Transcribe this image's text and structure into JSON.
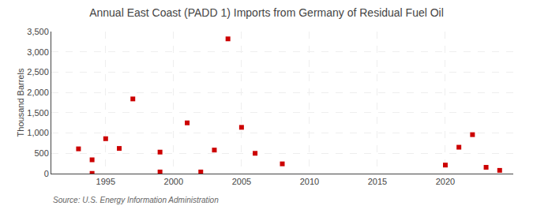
{
  "chart_data": {
    "type": "scatter",
    "title": "Annual East Coast (PADD 1) Imports from Germany of Residual Fuel Oil",
    "ylabel": "Thousand Barrels",
    "annotations": [
      "Source: U.S. Energy Information Administration"
    ],
    "x": [
      1993,
      1994,
      1994,
      1995,
      1996,
      1997,
      1999,
      1999,
      2001,
      2002,
      2003,
      2004,
      2005,
      2006,
      2008,
      2020,
      2021,
      2022,
      2023,
      2024
    ],
    "values": [
      610,
      340,
      5,
      860,
      620,
      1840,
      40,
      530,
      1250,
      40,
      580,
      3320,
      1140,
      500,
      240,
      210,
      650,
      960,
      155,
      80
    ],
    "color": "#cc0000",
    "marker": "square",
    "xlim": [
      1991,
      2025
    ],
    "xticks": [
      1995,
      2000,
      2005,
      2010,
      2015,
      2020
    ],
    "ylim": [
      0,
      3500
    ],
    "yticks": [
      0,
      500,
      {
        "value": 1000,
        "label": "1,000"
      },
      {
        "value": 1500,
        "label": "1,500"
      },
      {
        "value": 2000,
        "label": "2,000"
      },
      {
        "value": 2500,
        "label": "2,500"
      },
      {
        "value": 3000,
        "label": "3,000"
      },
      {
        "value": 3500,
        "label": "3,500"
      }
    ],
    "grid": true
  }
}
